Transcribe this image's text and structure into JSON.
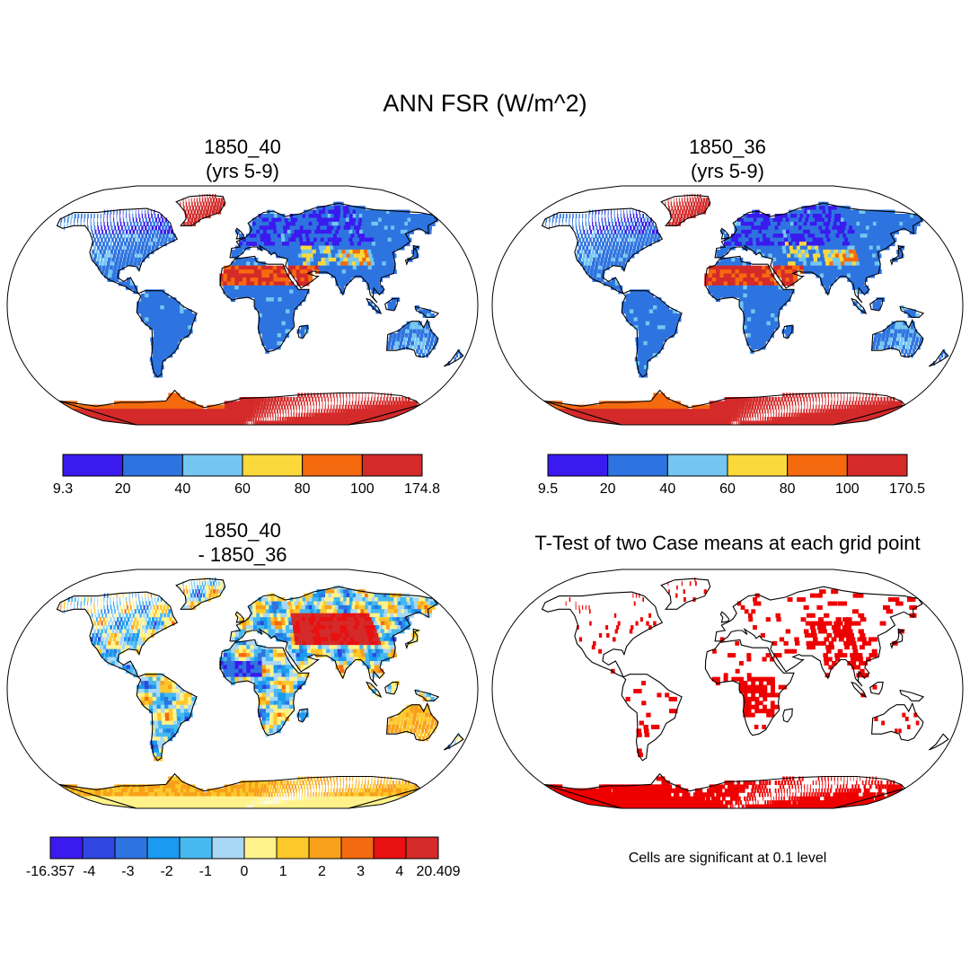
{
  "title": "ANN FSR (W/m^2)",
  "panels": [
    {
      "title_line1": "1850_40",
      "title_line2": "(yrs 5-9)",
      "field": "fsr",
      "colorbar": {
        "colors": [
          "#3a1aee",
          "#2e74e0",
          "#74c6f0",
          "#fcd93a",
          "#f56a0e",
          "#d42a2a"
        ],
        "labels": [
          "9.3",
          "20",
          "40",
          "60",
          "80",
          "100",
          "174.8"
        ]
      }
    },
    {
      "title_line1": "1850_36",
      "title_line2": "(yrs 5-9)",
      "field": "fsr",
      "colorbar": {
        "colors": [
          "#3a1aee",
          "#2e74e0",
          "#74c6f0",
          "#fcd93a",
          "#f56a0e",
          "#d42a2a"
        ],
        "labels": [
          "9.5",
          "20",
          "40",
          "60",
          "80",
          "100",
          "170.5"
        ]
      }
    },
    {
      "title_line1": "1850_40",
      "title_line2": "- 1850_36",
      "field": "diff",
      "colorbar": {
        "colors": [
          "#3a1aee",
          "#3046e0",
          "#2e74e0",
          "#1a9af0",
          "#48b8f0",
          "#a8d8f5",
          "#fff28a",
          "#fdc82a",
          "#f8a01a",
          "#f56a0e",
          "#e81010",
          "#d42a2a"
        ],
        "labels": [
          "-16.357",
          "-4",
          "-3",
          "-2",
          "-1",
          "0",
          "1",
          "2",
          "3",
          "4",
          "20.409"
        ]
      }
    },
    {
      "title_line1": "T-Test of two Case means at each grid point",
      "title_line2": "",
      "field": "ttest",
      "note": "Cells are significant at 0.1 level",
      "mask_color": "#ee0000"
    }
  ]
}
